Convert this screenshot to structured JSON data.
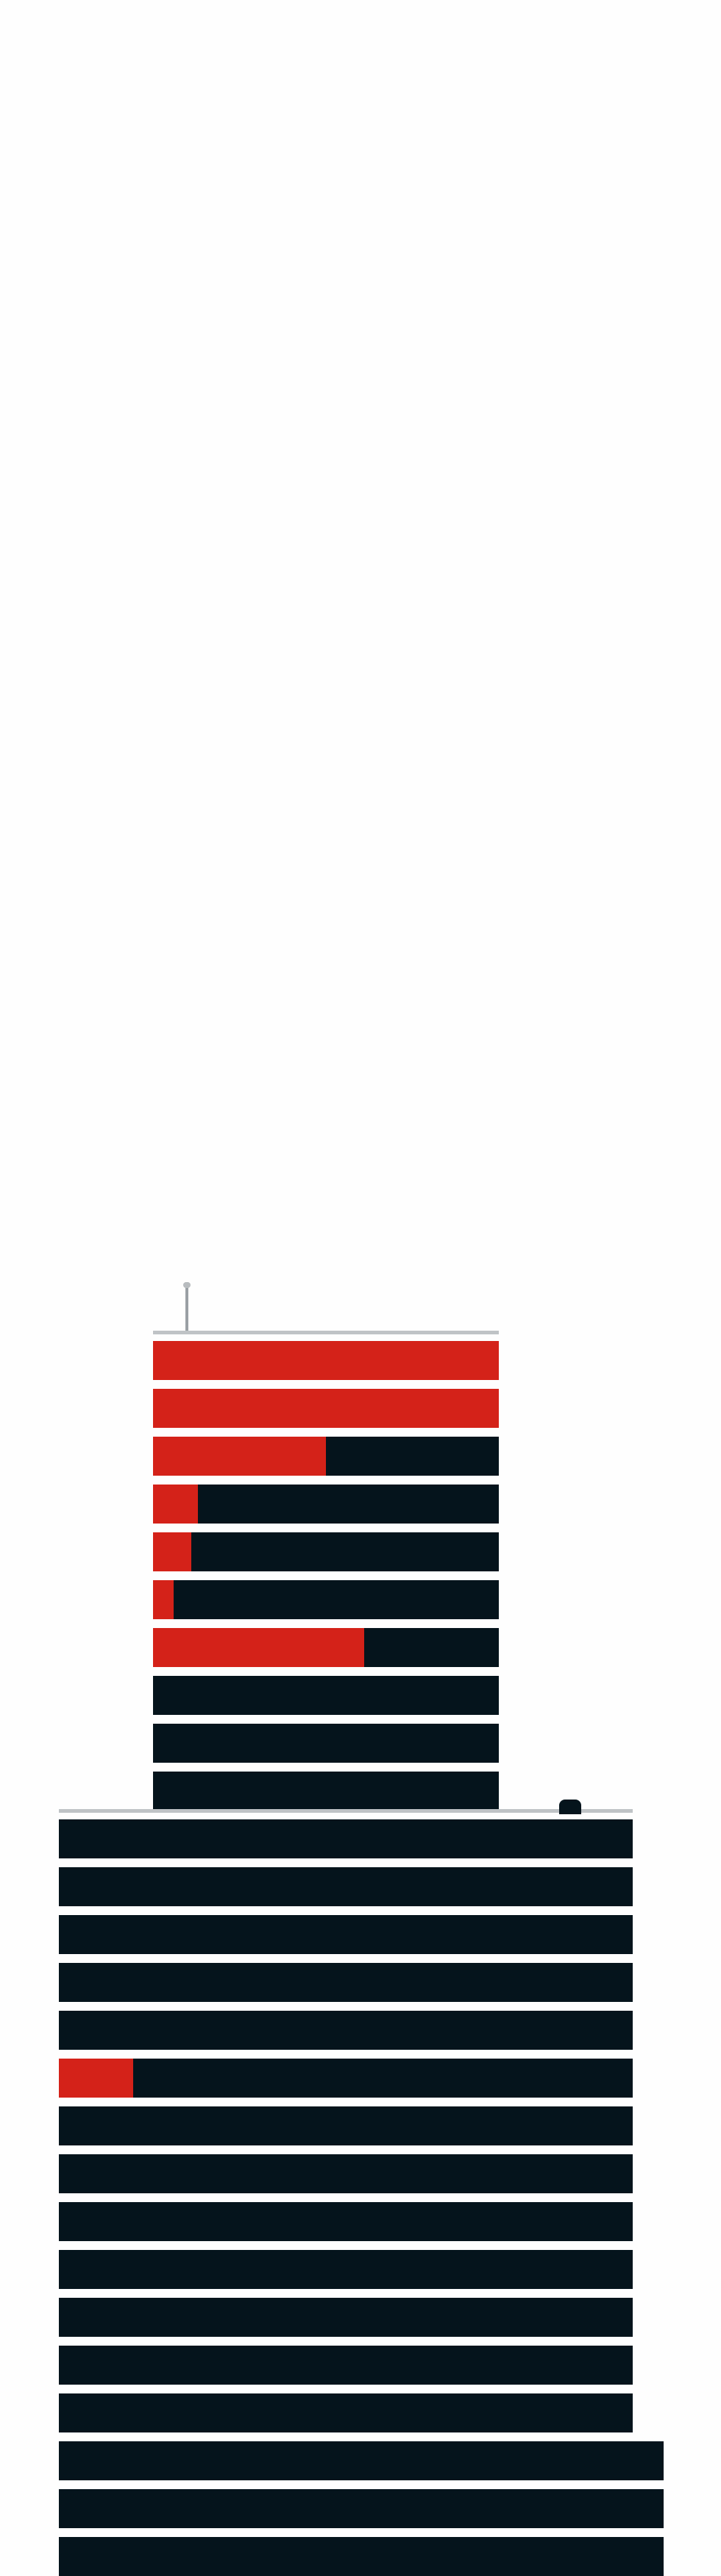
{
  "palette": {
    "background": "#fefefe",
    "floor_dark": "#05141c",
    "floor_lit": "#d42219",
    "floor_gap": "#eef0f2"
  },
  "upper_tower": {
    "floors": [
      {
        "lit_fraction": 1.0
      },
      {
        "lit_fraction": 1.0
      },
      {
        "lit_fraction": 0.5
      },
      {
        "lit_fraction": 0.13
      },
      {
        "lit_fraction": 0.11
      },
      {
        "lit_fraction": 0.06
      },
      {
        "lit_fraction": 0.61
      },
      {
        "lit_fraction": 0.0
      },
      {
        "lit_fraction": 0.0
      },
      {
        "lit_fraction": 0.0
      }
    ]
  },
  "lower_tower": {
    "floors": [
      {
        "lit_fraction": 0.0
      },
      {
        "lit_fraction": 0.0
      },
      {
        "lit_fraction": 0.0
      },
      {
        "lit_fraction": 0.0
      },
      {
        "lit_fraction": 0.0
      },
      {
        "lit_fraction": 0.13
      },
      {
        "lit_fraction": 0.0
      },
      {
        "lit_fraction": 0.0
      },
      {
        "lit_fraction": 0.0
      },
      {
        "lit_fraction": 0.0
      },
      {
        "lit_fraction": 0.0
      },
      {
        "lit_fraction": 0.0
      },
      {
        "lit_fraction": 0.0
      },
      {
        "lit_fraction": 0.0
      },
      {
        "lit_fraction": 0.0
      },
      {
        "lit_fraction": 0.0
      }
    ]
  }
}
